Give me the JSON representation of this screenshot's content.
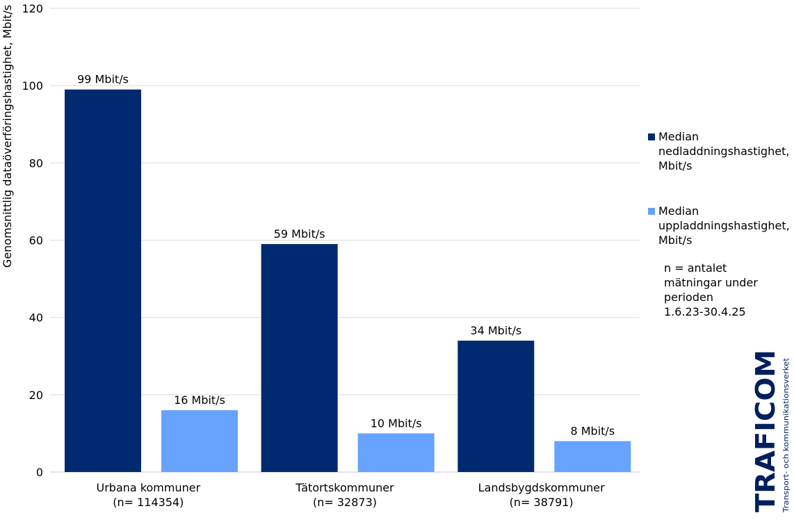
{
  "chart_data": {
    "type": "bar",
    "categories": [
      [
        "Urbana kommuner",
        "(n= 114354)"
      ],
      [
        "Tätortskommuner",
        "(n= 32873)"
      ],
      [
        "Landsbygdskommuner",
        "(n= 38791)"
      ]
    ],
    "series": [
      {
        "name": "Median nedladdningshastighet, Mbit/s",
        "color": "#002a6f",
        "values": [
          99,
          59,
          34
        ],
        "labels": [
          "99 Mbit/s",
          "59 Mbit/s",
          "34 Mbit/s"
        ]
      },
      {
        "name": "Median uppladdningshastighet, Mbit/s",
        "color": "#66a3ff",
        "values": [
          16,
          10,
          8
        ],
        "labels": [
          "16 Mbit/s",
          "10 Mbit/s",
          "8 Mbit/s"
        ]
      }
    ],
    "ylabel": "Genomsnittlig dataöverföringshastighet, Mbit/s",
    "ylim": [
      0,
      120
    ],
    "yticks": [
      0,
      20,
      40,
      60,
      80,
      100,
      120
    ],
    "grid": true,
    "legend_position": "right"
  },
  "legend": {
    "items": [
      {
        "lines": [
          "Median",
          "nedladdningshastighet,",
          "Mbit/s"
        ],
        "color": "#002a6f"
      },
      {
        "lines": [
          "Median",
          "uppladdningshastighet,",
          "Mbit/s"
        ],
        "color": "#66a3ff"
      }
    ]
  },
  "note": {
    "lines": [
      "n = antalet",
      "mätningar under",
      "perioden",
      "1.6.23-30.4.25"
    ]
  },
  "logo": {
    "name": "TRAFICOM",
    "tagline": "Transport- och kommunikationsverket"
  }
}
